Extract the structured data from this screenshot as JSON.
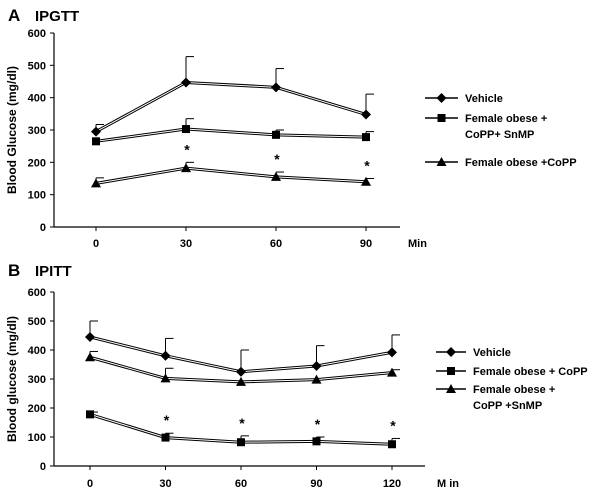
{
  "chart_data": [
    {
      "type": "line",
      "panel": "A",
      "title": "IPGTT",
      "ylabel": "Blood Glucose (mg/dl)",
      "xunit": "Min",
      "x": [
        0,
        30,
        60,
        90
      ],
      "xticks": [
        "0",
        "30",
        "60",
        "90"
      ],
      "ylim": [
        0,
        600
      ],
      "yticks": [
        "0",
        "100",
        "200",
        "300",
        "400",
        "500",
        "600"
      ],
      "series": [
        {
          "legend_lines": [
            "Vehicle"
          ],
          "marker": "diamond",
          "values": [
            295,
            447,
            432,
            348
          ],
          "err": [
            22,
            80,
            58,
            63
          ]
        },
        {
          "legend_lines": [
            "Female obese +",
            "CoPP+ SnMP"
          ],
          "marker": "square",
          "values": [
            265,
            303,
            285,
            278
          ],
          "err": [
            0,
            32,
            15,
            17
          ]
        },
        {
          "legend_lines": [
            "Female obese +CoPP"
          ],
          "marker": "triangle",
          "values": [
            135,
            182,
            155,
            140
          ],
          "err": [
            17,
            18,
            15,
            10
          ]
        }
      ],
      "significance": [
        {
          "x": 30,
          "label": "*"
        },
        {
          "x": 60,
          "label": "*"
        },
        {
          "x": 90,
          "label": "*"
        }
      ]
    },
    {
      "type": "line",
      "panel": "B",
      "title": "IPITT",
      "ylabel": "Blood glucose (mg/dl)",
      "xunit": "M in",
      "x": [
        0,
        30,
        60,
        90,
        120
      ],
      "xticks": [
        "0",
        "30",
        "60",
        "90",
        "120"
      ],
      "ylim": [
        0,
        600
      ],
      "yticks": [
        "0",
        "100",
        "200",
        "300",
        "400",
        "500",
        "600"
      ],
      "series": [
        {
          "legend_lines": [
            "Vehicle"
          ],
          "marker": "diamond",
          "values": [
            445,
            380,
            325,
            345,
            392
          ],
          "err": [
            55,
            60,
            75,
            70,
            60
          ]
        },
        {
          "legend_lines": [
            "Female obese + CoPP"
          ],
          "marker": "square",
          "values": [
            178,
            98,
            82,
            85,
            75
          ],
          "err": [
            8,
            15,
            22,
            15,
            20
          ]
        },
        {
          "legend_lines": [
            "Female obese +",
            "CoPP +SnMP"
          ],
          "marker": "triangle",
          "values": [
            375,
            302,
            290,
            298,
            322
          ],
          "err": [
            20,
            35,
            0,
            0,
            10
          ]
        }
      ],
      "significance": [
        {
          "x": 30,
          "label": "*"
        },
        {
          "x": 60,
          "label": "*"
        },
        {
          "x": 90,
          "label": "*"
        },
        {
          "x": 120,
          "label": "*"
        }
      ]
    }
  ]
}
